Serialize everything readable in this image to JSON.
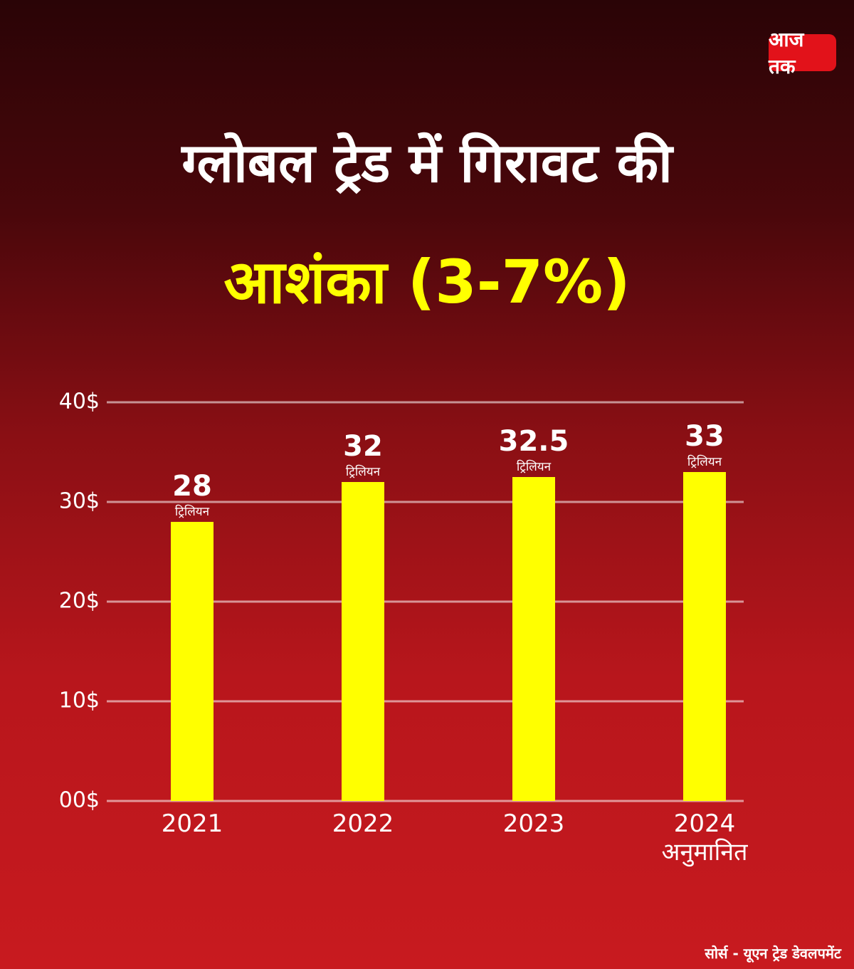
{
  "logo": "आज तक",
  "source": "सोर्स - यूएन ट्रेड डेवलपमेंट",
  "chart_data": {
    "type": "bar",
    "title": "ग्लोबल ट्रेड में गिरावट की",
    "subtitle": "आशंका (3-7%)",
    "categories": [
      "2021",
      "2022",
      "2023",
      "2024\nअनुमानित"
    ],
    "values": [
      28,
      32,
      32.5,
      33
    ],
    "unit_label": "ट्रिलियन",
    "color": "#ffff00",
    "ylim": [
      0,
      40
    ],
    "yticks": [
      {
        "value": 0,
        "label": "00$"
      },
      {
        "value": 10,
        "label": "10$"
      },
      {
        "value": 20,
        "label": "20$"
      },
      {
        "value": 30,
        "label": "30$"
      },
      {
        "value": 40,
        "label": "40$"
      }
    ],
    "grid": true
  }
}
